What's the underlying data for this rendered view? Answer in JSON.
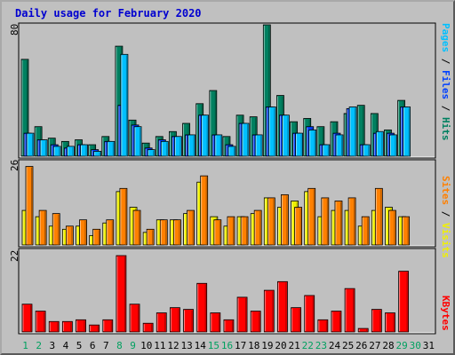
{
  "title": "Daily usage for February 2020",
  "right_labels": {
    "top": [
      {
        "text": "Pages",
        "color": "#00c0ff"
      },
      {
        "text": " / ",
        "color": "#000000"
      },
      {
        "text": "Files",
        "color": "#0040ff"
      },
      {
        "text": " / ",
        "color": "#000000"
      },
      {
        "text": "Hits",
        "color": "#008060"
      }
    ],
    "middle": [
      {
        "text": "Sites",
        "color": "#ff8000"
      },
      {
        "text": " / ",
        "color": "#000000"
      },
      {
        "text": "Visits",
        "color": "#f0f000"
      }
    ],
    "bottom": [
      {
        "text": "KBytes",
        "color": "#ff0000"
      }
    ]
  },
  "chart_data": [
    {
      "type": "bar",
      "title": "Daily usage for February 2020",
      "ymax_label": "80",
      "ylim": [
        0,
        80
      ],
      "days": [
        "1",
        "2",
        "3",
        "4",
        "5",
        "6",
        "7",
        "8",
        "9",
        "10",
        "11",
        "12",
        "13",
        "14",
        "15",
        "16",
        "17",
        "18",
        "19",
        "20",
        "21",
        "22",
        "23",
        "24",
        "25",
        "26",
        "27",
        "28",
        "29",
        "30",
        "31"
      ],
      "weekend_days": [
        "1",
        "2",
        "8",
        "9",
        "15",
        "16",
        "22",
        "23",
        "29",
        "30"
      ],
      "series": [
        {
          "name": "Hits",
          "color": "#008060",
          "values": [
            59,
            18,
            11,
            9,
            10,
            7,
            12,
            67,
            22,
            8,
            12,
            15,
            20,
            32,
            40,
            12,
            25,
            24,
            80,
            37,
            21,
            23,
            18,
            21,
            26,
            31,
            26,
            16,
            34,
            0,
            0
          ]
        },
        {
          "name": "Files",
          "color": "#0040ff",
          "values": [
            14,
            10,
            7,
            5,
            7,
            4,
            9,
            31,
            19,
            5,
            10,
            12,
            13,
            25,
            13,
            7,
            20,
            13,
            30,
            25,
            14,
            18,
            7,
            14,
            29,
            7,
            14,
            14,
            30,
            0,
            0
          ]
        },
        {
          "name": "Pages",
          "color": "#00c0ff",
          "values": [
            14,
            10,
            6,
            6,
            7,
            3,
            9,
            62,
            18,
            4,
            9,
            12,
            13,
            25,
            13,
            6,
            20,
            13,
            30,
            25,
            14,
            16,
            7,
            13,
            30,
            7,
            15,
            13,
            30,
            0,
            0
          ]
        }
      ]
    },
    {
      "type": "bar",
      "ymax_label": "26",
      "ylim": [
        0,
        26
      ],
      "series": [
        {
          "name": "Visits",
          "color": "#f0f000",
          "values": [
            11,
            9,
            6,
            5,
            6,
            3,
            7,
            17,
            12,
            4,
            8,
            8,
            10,
            20,
            9,
            6,
            9,
            10,
            15,
            12,
            14,
            17,
            9,
            11,
            11,
            6,
            11,
            12,
            9,
            0,
            0
          ]
        },
        {
          "name": "Sites",
          "color": "#ff8000",
          "values": [
            25,
            11,
            10,
            6,
            8,
            5,
            8,
            18,
            11,
            5,
            8,
            8,
            11,
            22,
            8,
            9,
            9,
            11,
            15,
            16,
            12,
            18,
            15,
            14,
            15,
            9,
            18,
            11,
            9,
            0,
            0
          ]
        }
      ]
    },
    {
      "type": "bar",
      "ymax_label": "22",
      "ylim": [
        0,
        22
      ],
      "series": [
        {
          "name": "KBytes",
          "color": "#ff0000",
          "values": [
            8,
            6,
            3,
            3,
            3.5,
            2,
            3.5,
            22,
            8,
            2.5,
            5.5,
            7,
            6.5,
            14,
            5.5,
            3.5,
            10,
            6,
            12,
            14.5,
            7,
            10.5,
            3.5,
            6,
            12.5,
            1,
            6.5,
            5.5,
            17.5,
            0,
            0
          ]
        }
      ]
    }
  ]
}
